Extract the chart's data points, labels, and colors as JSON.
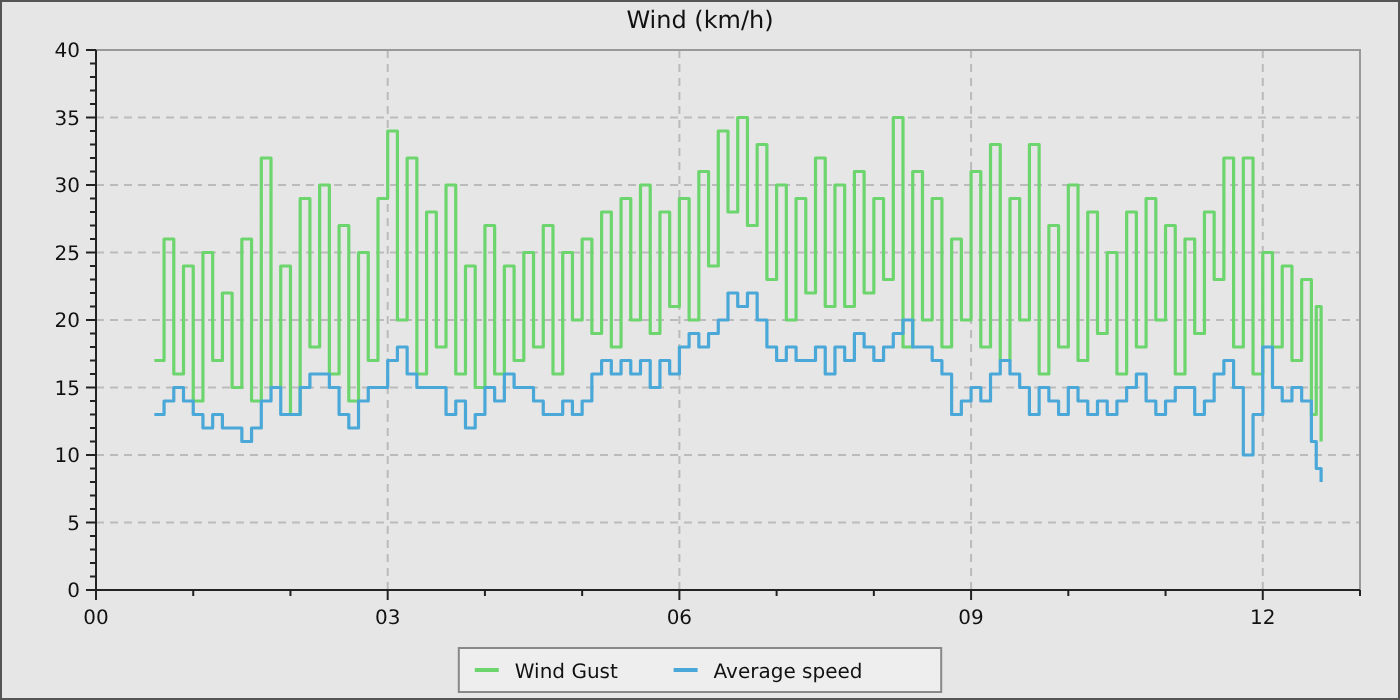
{
  "chart_data": {
    "type": "step",
    "title": "Wind (km/h)",
    "legend": "bottom",
    "grid": true,
    "x": [
      0.6,
      0.7,
      0.8,
      0.9,
      1.0,
      1.1,
      1.2,
      1.3,
      1.4,
      1.5,
      1.6,
      1.7,
      1.8,
      1.9,
      2.0,
      2.1,
      2.2,
      2.3,
      2.4,
      2.5,
      2.6,
      2.7,
      2.8,
      2.9,
      3.0,
      3.1,
      3.2,
      3.3,
      3.4,
      3.5,
      3.6,
      3.7,
      3.8,
      3.9,
      4.0,
      4.1,
      4.2,
      4.3,
      4.4,
      4.5,
      4.6,
      4.7,
      4.8,
      4.9,
      5.0,
      5.1,
      5.2,
      5.3,
      5.4,
      5.5,
      5.6,
      5.7,
      5.8,
      5.9,
      6.0,
      6.1,
      6.2,
      6.3,
      6.4,
      6.5,
      6.6,
      6.7,
      6.8,
      6.9,
      7.0,
      7.1,
      7.2,
      7.3,
      7.4,
      7.5,
      7.6,
      7.7,
      7.8,
      7.9,
      8.0,
      8.1,
      8.2,
      8.3,
      8.4,
      8.5,
      8.6,
      8.7,
      8.8,
      8.9,
      9.0,
      9.1,
      9.2,
      9.3,
      9.4,
      9.5,
      9.6,
      9.7,
      9.8,
      9.9,
      10.0,
      10.1,
      10.2,
      10.3,
      10.4,
      10.5,
      10.6,
      10.7,
      10.8,
      10.9,
      11.0,
      11.1,
      11.2,
      11.3,
      11.4,
      11.5,
      11.6,
      11.7,
      11.8,
      11.9,
      12.0,
      12.1,
      12.2,
      12.3,
      12.4,
      12.5,
      12.55,
      12.6
    ],
    "series": [
      {
        "name": "Wind Gust",
        "color": "#6dd56d",
        "values": [
          17,
          26,
          16,
          24,
          14,
          25,
          17,
          22,
          15,
          26,
          14,
          32,
          15,
          24,
          13,
          29,
          18,
          30,
          16,
          27,
          14,
          25,
          17,
          29,
          34,
          20,
          32,
          16,
          28,
          18,
          30,
          16,
          24,
          15,
          27,
          16,
          24,
          17,
          25,
          18,
          27,
          16,
          25,
          20,
          26,
          19,
          28,
          18,
          29,
          20,
          30,
          19,
          28,
          21,
          29,
          20,
          31,
          24,
          34,
          28,
          35,
          27,
          33,
          23,
          30,
          20,
          29,
          22,
          32,
          21,
          30,
          21,
          31,
          22,
          29,
          23,
          35,
          18,
          31,
          20,
          29,
          18,
          26,
          20,
          31,
          18,
          33,
          17,
          29,
          20,
          33,
          16,
          27,
          18,
          30,
          17,
          28,
          19,
          25,
          16,
          28,
          18,
          29,
          20,
          27,
          16,
          26,
          19,
          28,
          23,
          32,
          18,
          32,
          16,
          25,
          18,
          24,
          17,
          23,
          13,
          21,
          11
        ]
      },
      {
        "name": "Average speed",
        "color": "#4aa8d8",
        "values": [
          13,
          14,
          15,
          14,
          13,
          12,
          13,
          12,
          12,
          11,
          12,
          14,
          15,
          13,
          13,
          15,
          16,
          16,
          15,
          13,
          12,
          14,
          15,
          15,
          17,
          18,
          16,
          15,
          15,
          15,
          13,
          14,
          12,
          13,
          15,
          14,
          16,
          15,
          15,
          14,
          13,
          13,
          14,
          13,
          14,
          16,
          17,
          16,
          17,
          16,
          17,
          15,
          17,
          16,
          18,
          19,
          18,
          19,
          20,
          22,
          21,
          22,
          20,
          18,
          17,
          18,
          17,
          17,
          18,
          16,
          18,
          17,
          19,
          18,
          17,
          18,
          19,
          20,
          18,
          18,
          17,
          16,
          13,
          14,
          15,
          14,
          16,
          17,
          16,
          15,
          13,
          15,
          14,
          13,
          15,
          14,
          13,
          14,
          13,
          14,
          15,
          16,
          14,
          13,
          14,
          15,
          15,
          13,
          14,
          16,
          17,
          15,
          10,
          13,
          18,
          15,
          14,
          15,
          14,
          11,
          9,
          8
        ]
      }
    ],
    "xlim": [
      0,
      13
    ],
    "xticks": [
      {
        "value": 0,
        "label": "00"
      },
      {
        "value": 1,
        "label": null
      },
      {
        "value": 2,
        "label": null
      },
      {
        "value": 3,
        "label": "03"
      },
      {
        "value": 4,
        "label": null
      },
      {
        "value": 5,
        "label": null
      },
      {
        "value": 6,
        "label": "06"
      },
      {
        "value": 7,
        "label": null
      },
      {
        "value": 8,
        "label": null
      },
      {
        "value": 9,
        "label": "09"
      },
      {
        "value": 10,
        "label": null
      },
      {
        "value": 11,
        "label": null
      },
      {
        "value": 12,
        "label": "12"
      },
      {
        "value": 13,
        "label": null
      }
    ],
    "ylim": [
      0,
      40
    ],
    "yticks": [
      0,
      {
        "value": 1,
        "label": null
      },
      {
        "value": 2,
        "label": null
      },
      {
        "value": 3,
        "label": null
      },
      {
        "value": 4,
        "label": null
      },
      5,
      {
        "value": 6,
        "label": null
      },
      {
        "value": 7,
        "label": null
      },
      {
        "value": 8,
        "label": null
      },
      {
        "value": 9,
        "label": null
      },
      10,
      {
        "value": 11,
        "label": null
      },
      {
        "value": 12,
        "label": null
      },
      {
        "value": 13,
        "label": null
      },
      {
        "value": 14,
        "label": null
      },
      15,
      {
        "value": 16,
        "label": null
      },
      {
        "value": 17,
        "label": null
      },
      {
        "value": 18,
        "label": null
      },
      {
        "value": 19,
        "label": null
      },
      20,
      {
        "value": 21,
        "label": null
      },
      {
        "value": 22,
        "label": null
      },
      {
        "value": 23,
        "label": null
      },
      {
        "value": 24,
        "label": null
      },
      25,
      {
        "value": 26,
        "label": null
      },
      {
        "value": 27,
        "label": null
      },
      {
        "value": 28,
        "label": null
      },
      {
        "value": 29,
        "label": null
      },
      30,
      {
        "value": 31,
        "label": null
      },
      {
        "value": 32,
        "label": null
      },
      {
        "value": 33,
        "label": null
      },
      {
        "value": 34,
        "label": null
      },
      35,
      {
        "value": 36,
        "label": null
      },
      {
        "value": 37,
        "label": null
      },
      {
        "value": 38,
        "label": null
      },
      {
        "value": 39,
        "label": null
      },
      40
    ]
  }
}
